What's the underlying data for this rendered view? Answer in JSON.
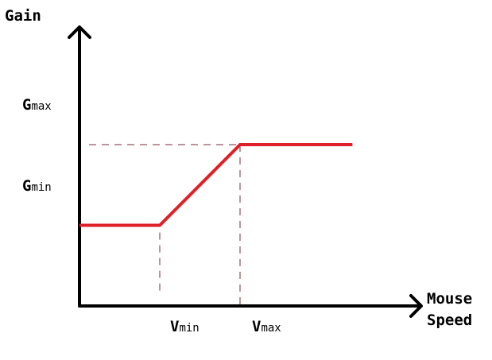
{
  "chart_data": {
    "type": "line",
    "title": "",
    "xlabel": [
      "Mouse",
      "Speed"
    ],
    "ylabel": "Gain",
    "x_ticks": [
      {
        "main": "V",
        "sub": "min",
        "value": 1
      },
      {
        "main": "V",
        "sub": "max",
        "value": 2
      }
    ],
    "y_ticks": [
      {
        "main": "G",
        "sub": "min",
        "value": 1
      },
      {
        "main": "G",
        "sub": "max",
        "value": 2
      }
    ],
    "xlim": [
      0,
      3.6
    ],
    "ylim": [
      0,
      2.5
    ],
    "series": [
      {
        "x": [
          0,
          1,
          2,
          3.4
        ],
        "y": [
          1,
          1,
          2,
          2
        ]
      }
    ],
    "guides": [
      {
        "kind": "horizontal",
        "at": 2,
        "from": 0,
        "to": 2
      },
      {
        "kind": "vertical",
        "at": 1,
        "from": 0.14,
        "to": 0.91
      },
      {
        "kind": "vertical",
        "at": 2,
        "from": 0,
        "to": 2
      }
    ],
    "grid": false,
    "colors": {
      "series": "#e02028",
      "axes": "#000000",
      "guides": "#7a2a3a"
    }
  }
}
